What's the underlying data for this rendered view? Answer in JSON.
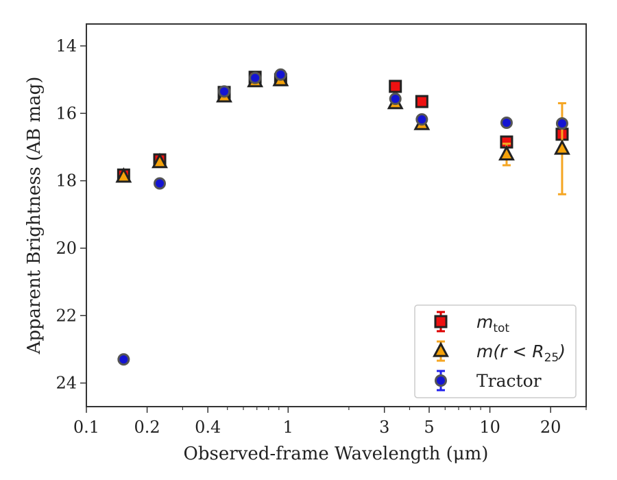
{
  "chart_data": {
    "type": "scatter",
    "xlabel": "Observed-frame Wavelength (μm)",
    "ylabel": "Apparent Brightness (AB mag)",
    "x_scale": "log",
    "xlim": [
      0.1,
      30
    ],
    "ylim": [
      24.7,
      13.35
    ],
    "y_inverted": true,
    "grid": false,
    "legend_position": "bottom-right",
    "x_ticks": [
      {
        "value": 0.1,
        "label": "0.1"
      },
      {
        "value": 0.2,
        "label": "0.2"
      },
      {
        "value": 0.4,
        "label": "0.4"
      },
      {
        "value": 1,
        "label": "1"
      },
      {
        "value": 3,
        "label": "3"
      },
      {
        "value": 5,
        "label": "5"
      },
      {
        "value": 10,
        "label": "10"
      },
      {
        "value": 20,
        "label": "20"
      }
    ],
    "y_ticks": [
      {
        "value": 14,
        "label": "14"
      },
      {
        "value": 16,
        "label": "16"
      },
      {
        "value": 18,
        "label": "18"
      },
      {
        "value": 20,
        "label": "20"
      },
      {
        "value": 22,
        "label": "22"
      },
      {
        "value": 24,
        "label": "24"
      }
    ],
    "series": [
      {
        "name": "m_tot",
        "legend_label": "m",
        "legend_sub": "tot",
        "marker": "square",
        "color": "#ee1111",
        "edge_color": "#222222",
        "error_color": "#dd0000",
        "points": [
          {
            "x": 0.153,
            "y": 17.83,
            "err": 0.05
          },
          {
            "x": 0.231,
            "y": 17.38,
            "err": 0.06
          },
          {
            "x": 0.482,
            "y": 15.38,
            "err": 0.02
          },
          {
            "x": 0.686,
            "y": 14.93,
            "err": 0.02
          },
          {
            "x": 0.918,
            "y": 15.0,
            "err": 0.02
          },
          {
            "x": 3.4,
            "y": 15.2,
            "err": 0.03
          },
          {
            "x": 4.6,
            "y": 15.65,
            "err": 0.03
          },
          {
            "x": 12.1,
            "y": 16.85,
            "err": 0.1
          },
          {
            "x": 22.8,
            "y": 16.62,
            "err": 0.1
          }
        ]
      },
      {
        "name": "m(r < R25)",
        "legend_label": "m(r < R",
        "legend_sub": "25",
        "legend_tail": ")",
        "marker": "triangle",
        "color": "#f5a20a",
        "edge_color": "#222222",
        "error_color": "#f5a623",
        "points": [
          {
            "x": 0.153,
            "y": 17.88,
            "err": 0.04
          },
          {
            "x": 0.231,
            "y": 17.45,
            "err": 0.04
          },
          {
            "x": 0.482,
            "y": 15.5,
            "err": 0.02
          },
          {
            "x": 0.686,
            "y": 15.05,
            "err": 0.02
          },
          {
            "x": 0.918,
            "y": 15.02,
            "err": 0.02
          },
          {
            "x": 3.4,
            "y": 15.7,
            "err": 0.03
          },
          {
            "x": 4.6,
            "y": 16.32,
            "err": 0.03
          },
          {
            "x": 12.1,
            "y": 17.22,
            "err": 0.32
          },
          {
            "x": 22.8,
            "y": 17.05,
            "err": 1.35
          }
        ]
      },
      {
        "name": "Tractor",
        "legend_label": "Tractor",
        "marker": "circle",
        "color": "#1414d2",
        "edge_color": "#555555",
        "error_color": "#2222ee",
        "points": [
          {
            "x": 0.153,
            "y": 23.3,
            "err": 0.1
          },
          {
            "x": 0.231,
            "y": 18.08,
            "err": 0.1
          },
          {
            "x": 0.482,
            "y": 15.35,
            "err": 0.05
          },
          {
            "x": 0.686,
            "y": 14.95,
            "err": 0.05
          },
          {
            "x": 0.918,
            "y": 14.85,
            "err": 0.05
          },
          {
            "x": 3.4,
            "y": 15.57,
            "err": 0.05
          },
          {
            "x": 4.6,
            "y": 16.18,
            "err": 0.05
          },
          {
            "x": 12.1,
            "y": 16.28,
            "err": 0.05
          },
          {
            "x": 22.8,
            "y": 16.3,
            "err": 0.05
          }
        ]
      }
    ]
  }
}
